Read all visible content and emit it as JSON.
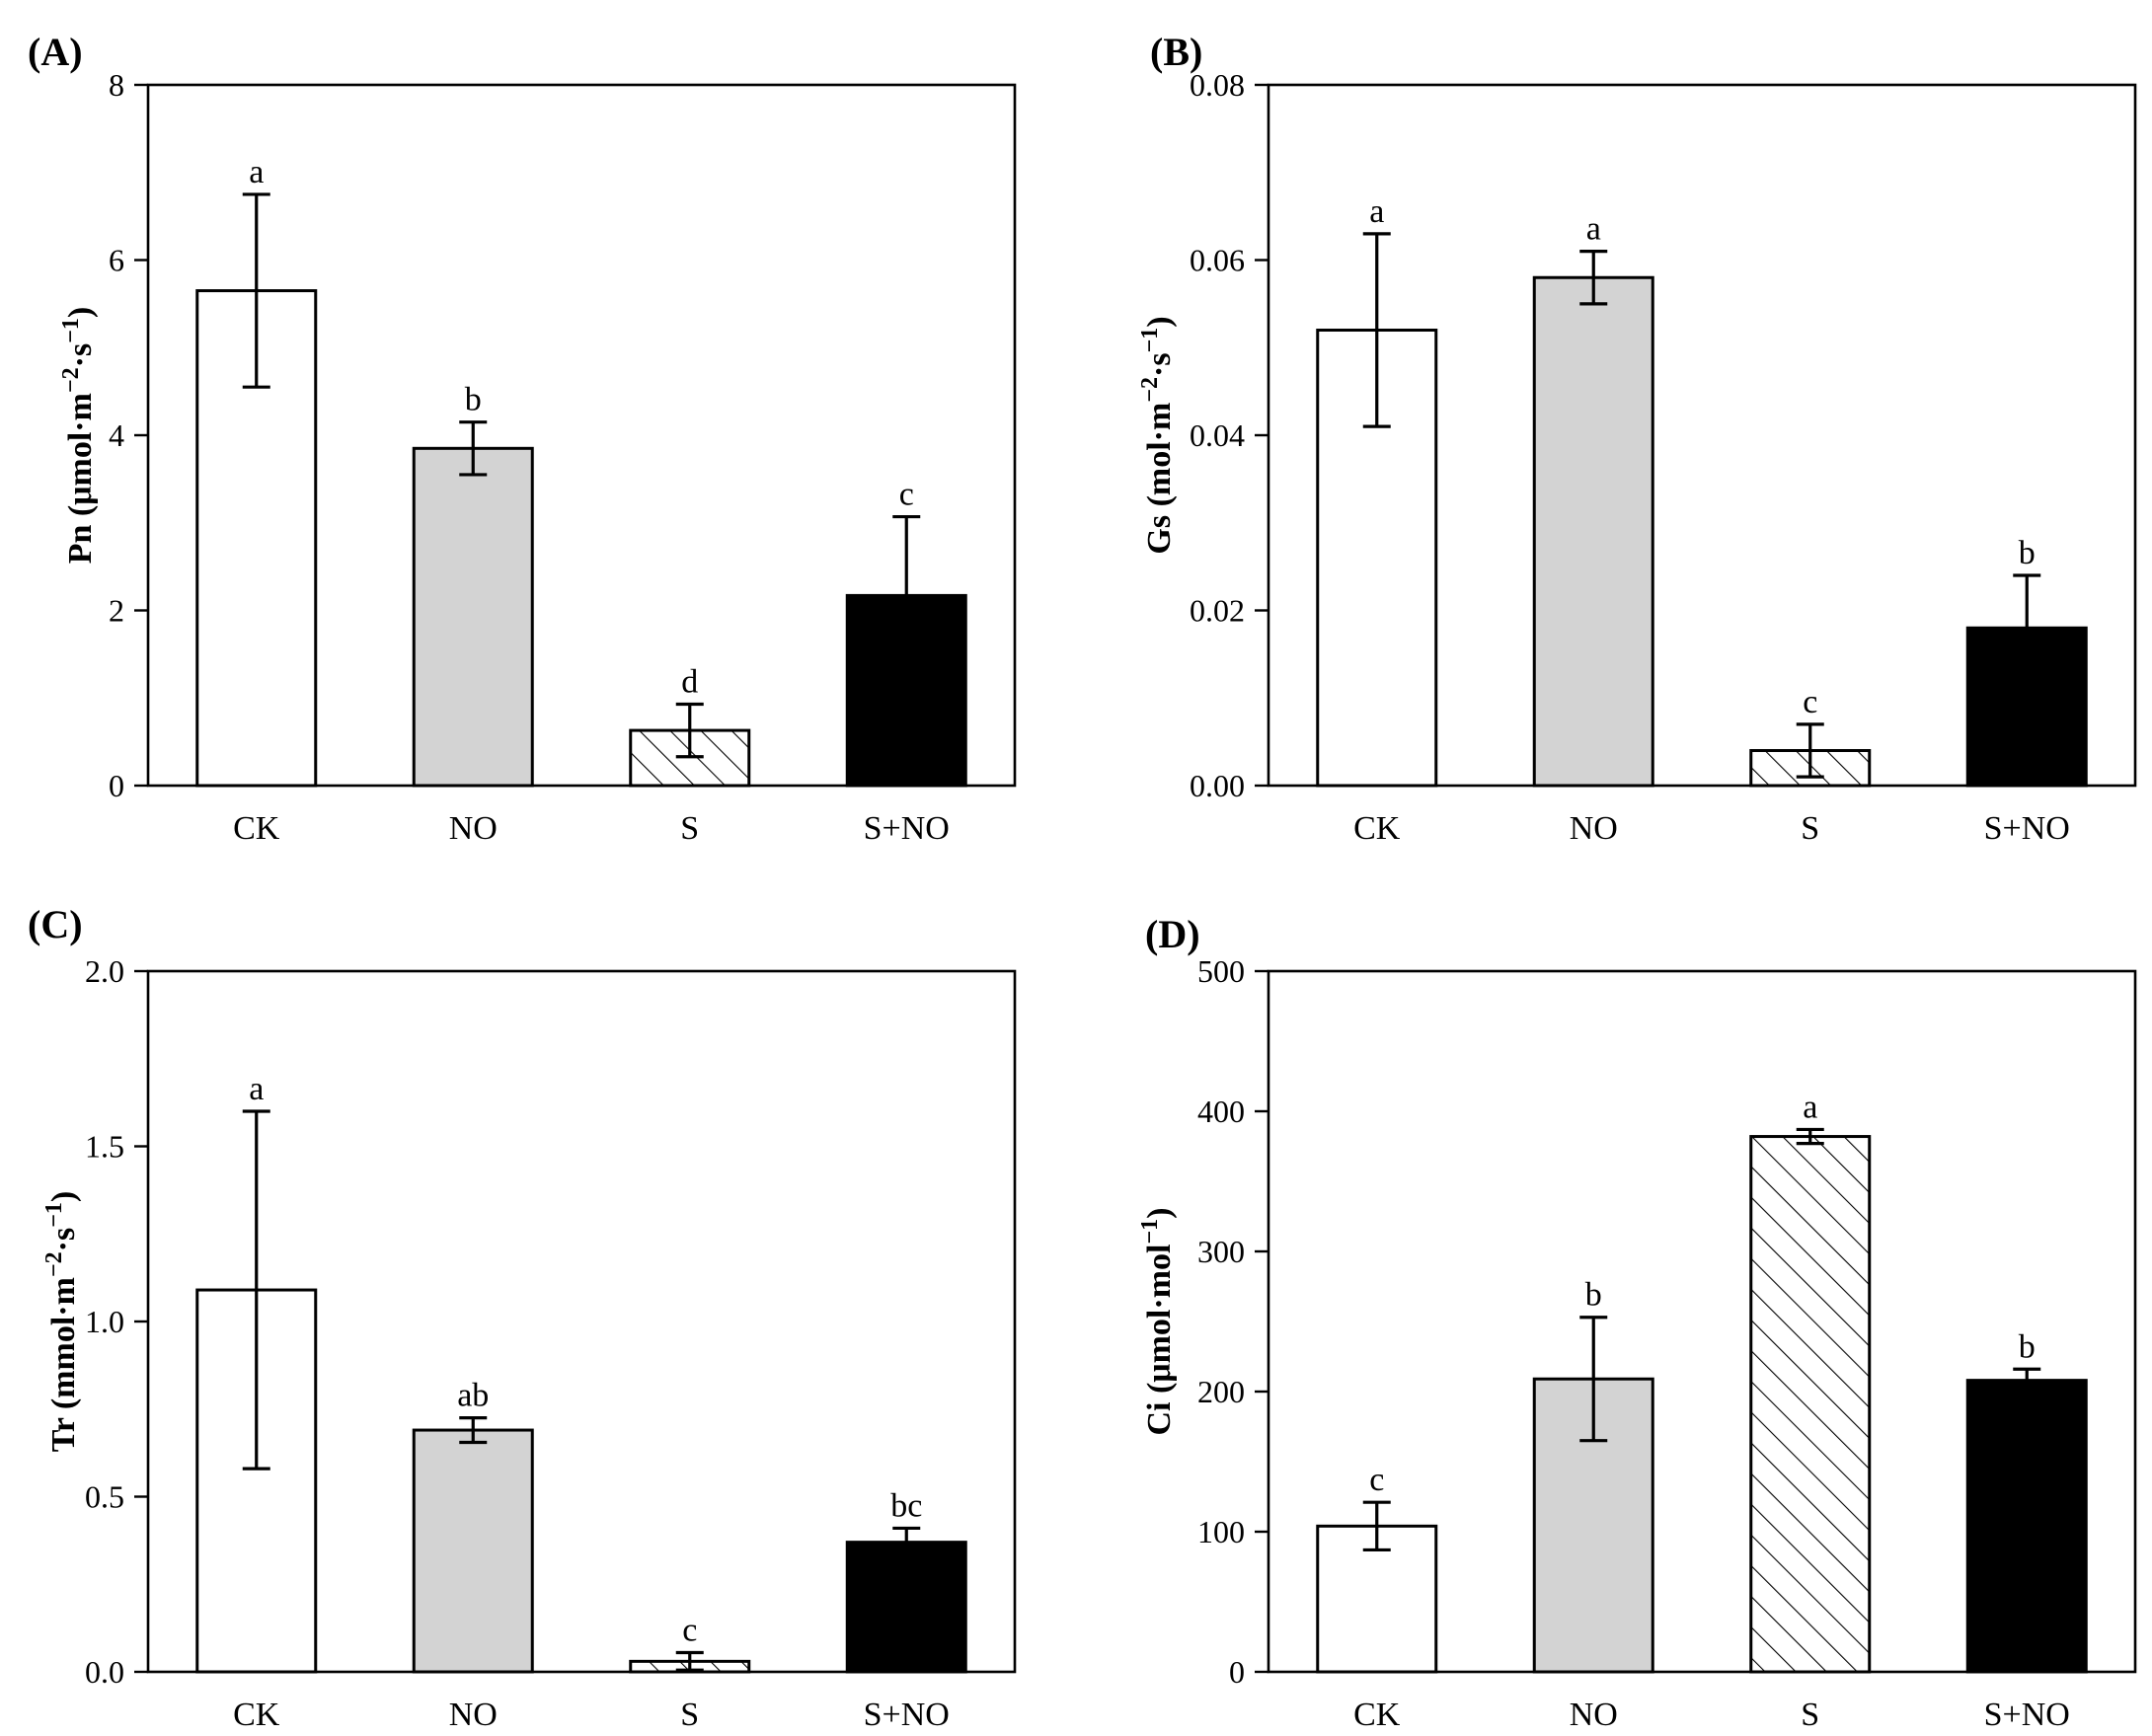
{
  "chart_data": [
    {
      "type": "bar",
      "panel_label": "(A)",
      "ylabel": "Pn (μmol·m⁻²·s⁻¹)",
      "categories": [
        "CK",
        "NO",
        "S",
        "S+NO"
      ],
      "values": [
        5.65,
        3.85,
        0.63,
        2.17
      ],
      "errors": [
        1.1,
        0.3,
        0.3,
        0.9
      ],
      "significance": [
        "a",
        "b",
        "d",
        "c"
      ],
      "ylim": [
        0,
        8
      ],
      "yticks": [
        "0",
        "2",
        "4",
        "6",
        "8"
      ],
      "ytick_values": [
        0,
        2,
        4,
        6,
        8
      ],
      "grid": false
    },
    {
      "type": "bar",
      "panel_label": "(B)",
      "ylabel": "Gs (mol·m⁻²·s⁻¹)",
      "categories": [
        "CK",
        "NO",
        "S",
        "S+NO"
      ],
      "values": [
        0.052,
        0.058,
        0.004,
        0.018
      ],
      "errors": [
        0.011,
        0.003,
        0.003,
        0.006
      ],
      "significance": [
        "a",
        "a",
        "c",
        "b"
      ],
      "ylim": [
        0,
        0.08
      ],
      "yticks": [
        "0.00",
        "0.02",
        "0.04",
        "0.06",
        "0.08"
      ],
      "ytick_values": [
        0,
        0.02,
        0.04,
        0.06,
        0.08
      ],
      "grid": false
    },
    {
      "type": "bar",
      "panel_label": "(C)",
      "ylabel": "Tr (mmol·m⁻²·s⁻¹)",
      "categories": [
        "CK",
        "NO",
        "S",
        "S+NO"
      ],
      "values": [
        1.09,
        0.69,
        0.03,
        0.37
      ],
      "errors": [
        0.51,
        0.035,
        0.025,
        0.04
      ],
      "significance": [
        "a",
        "ab",
        "c",
        "bc"
      ],
      "ylim": [
        0,
        2.0
      ],
      "yticks": [
        "0.0",
        "0.5",
        "1.0",
        "1.5",
        "2.0"
      ],
      "ytick_values": [
        0,
        0.5,
        1.0,
        1.5,
        2.0
      ],
      "grid": false
    },
    {
      "type": "bar",
      "panel_label": "(D)",
      "ylabel": "Ci (μmol·mol⁻¹)",
      "categories": [
        "CK",
        "NO",
        "S",
        "S+NO"
      ],
      "values": [
        104,
        209,
        382,
        208
      ],
      "errors": [
        17,
        44,
        5,
        8
      ],
      "significance": [
        "c",
        "b",
        "a",
        "b"
      ],
      "ylim": [
        0,
        500
      ],
      "yticks": [
        "0",
        "100",
        "200",
        "300",
        "400",
        "500"
      ],
      "ytick_values": [
        0,
        100,
        200,
        300,
        400,
        500
      ],
      "grid": false
    }
  ],
  "styles": {
    "fills": [
      "#ffffff",
      "#d3d3d3",
      "hatch",
      "#000000"
    ]
  }
}
